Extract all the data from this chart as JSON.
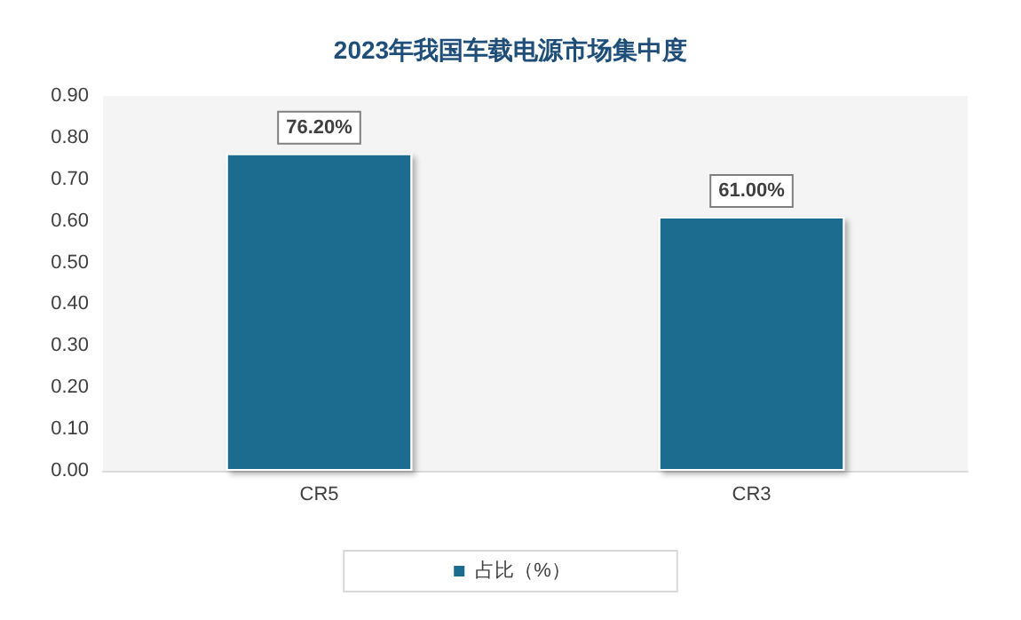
{
  "chart_data": {
    "type": "bar",
    "title": "2023年我国车载电源市场集中度",
    "categories": [
      "CR5",
      "CR3"
    ],
    "series": [
      {
        "name": "占比（%）",
        "color": "#1c6c8f",
        "values": [
          0.762,
          0.61
        ],
        "value_labels": [
          "76.20%",
          "61.00%"
        ]
      }
    ],
    "ylim": [
      0,
      0.9
    ],
    "yticks": [
      {
        "value": 0,
        "label": "0.00"
      },
      {
        "value": 0.1,
        "label": "0.10"
      },
      {
        "value": 0.2,
        "label": "0.20"
      },
      {
        "value": 0.3,
        "label": "0.30"
      },
      {
        "value": 0.4,
        "label": "0.40"
      },
      {
        "value": 0.5,
        "label": "0.50"
      },
      {
        "value": 0.6,
        "label": "0.60"
      },
      {
        "value": 0.7,
        "label": "0.70"
      },
      {
        "value": 0.8,
        "label": "0.80"
      },
      {
        "value": 0.9,
        "label": "0.90"
      }
    ],
    "grid": false,
    "legend": "bottom"
  }
}
